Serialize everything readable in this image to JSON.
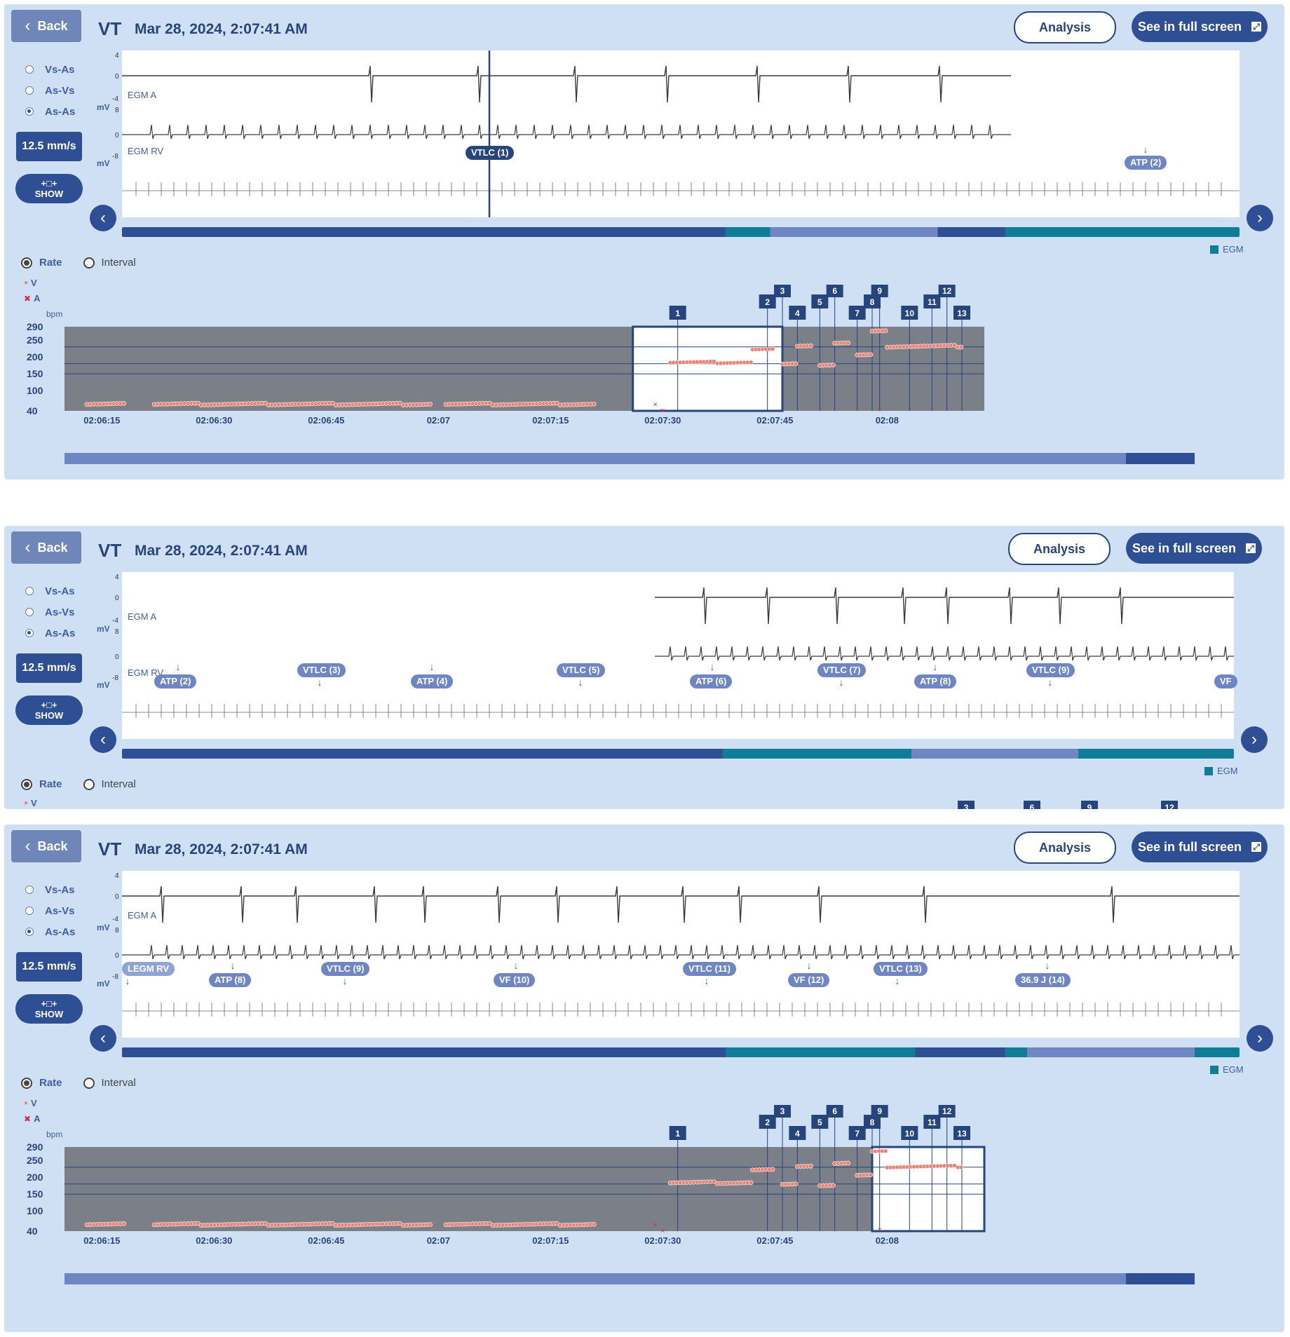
{
  "common": {
    "back_label": "Back",
    "episode_type": "VT",
    "timestamp": "Mar 28, 2024, 2:07:41 AM",
    "analysis_label": "Analysis",
    "fullscreen_label": "See in full screen",
    "radio_options": [
      "Vs-As",
      "As-Vs",
      "As-As"
    ],
    "selected_radio": "As-As",
    "sweep_speed": "12.5 mm/s",
    "show_label": "SHOW",
    "mv_unit": "mV",
    "scale_ticks": [
      "4",
      "0",
      "-4",
      "8",
      "0",
      "-8"
    ],
    "channel_a": "EGM A",
    "channel_rv": "EGM RV",
    "egm_legend": "EGM",
    "rate_label": "Rate",
    "interval_label": "Interval",
    "legend_v": "V",
    "legend_a": "A",
    "colors": {
      "panel_bg": "#cfe0f5",
      "primary": "#2e4f94",
      "trend_bg": "#7b7f88",
      "v_marker": "#f08072",
      "a_marker": "#d0304a",
      "egm_segment": "#0f7d95"
    }
  },
  "panels": [
    {
      "markers": [
        {
          "label": "VTLC (1)",
          "selected": true
        },
        {
          "label": "ATP (2)",
          "selected": false
        }
      ]
    },
    {
      "markers": [
        {
          "label": "ATP (2)"
        },
        {
          "label": "VTLC (3)"
        },
        {
          "label": "ATP (4)"
        },
        {
          "label": "VTLC (5)"
        },
        {
          "label": "ATP (6)"
        },
        {
          "label": "VTLC (7)"
        },
        {
          "label": "ATP (8)"
        },
        {
          "label": "VTLC (9)"
        },
        {
          "label": "VF"
        }
      ]
    },
    {
      "markers": [
        {
          "label": "LEGM RV"
        },
        {
          "label": "ATP (8)"
        },
        {
          "label": "VTLC (9)"
        },
        {
          "label": "VF (10)"
        },
        {
          "label": "VTLC (11)"
        },
        {
          "label": "VF (12)"
        },
        {
          "label": "VTLC (13)"
        },
        {
          "label": "36.9 J (14)"
        }
      ]
    }
  ],
  "trend": {
    "unit": "bpm",
    "y_ticks": [
      "290",
      "250",
      "200",
      "150",
      "100",
      "40"
    ],
    "time_ticks": [
      "02:06:15",
      "02:06:30",
      "02:06:45",
      "02:07",
      "02:07:15",
      "02:07:30",
      "02:07:45",
      "02:08"
    ],
    "episode_chips": [
      "1",
      "2",
      "3",
      "4",
      "5",
      "6",
      "7",
      "8",
      "9",
      "10",
      "11",
      "12",
      "13"
    ]
  },
  "chart_data": {
    "type": "scatter",
    "title": "",
    "xlabel": "",
    "ylabel": "bpm",
    "x_ticks": [
      "02:06:15",
      "02:06:30",
      "02:06:45",
      "02:07",
      "02:07:15",
      "02:07:30",
      "02:07:45",
      "02:08"
    ],
    "ylim": [
      40,
      290
    ],
    "series": [
      {
        "name": "V",
        "segments": [
          {
            "t_start": "02:06:13",
            "t_end": "02:06:18",
            "bpm": 60
          },
          {
            "t_start": "02:06:22",
            "t_end": "02:06:59",
            "bpm": 60
          },
          {
            "t_start": "02:07:01",
            "t_end": "02:07:21",
            "bpm": 60
          },
          {
            "t_start": "02:07:31",
            "t_end": "02:07:42",
            "bpm": 184
          },
          {
            "t_start": "02:07:42",
            "t_end": "02:07:45",
            "bpm": 225
          },
          {
            "t_start": "02:07:46",
            "t_end": "02:07:48",
            "bpm": 180
          },
          {
            "t_start": "02:07:48",
            "t_end": "02:07:50",
            "bpm": 235
          },
          {
            "t_start": "02:07:51",
            "t_end": "02:07:53",
            "bpm": 178
          },
          {
            "t_start": "02:07:53",
            "t_end": "02:07:55",
            "bpm": 240
          },
          {
            "t_start": "02:07:56",
            "t_end": "02:07:58",
            "bpm": 205
          },
          {
            "t_start": "02:07:58",
            "t_end": "02:08:00",
            "bpm": 278
          },
          {
            "t_start": "02:08:00",
            "t_end": "02:08:10",
            "bpm": 232
          }
        ]
      },
      {
        "name": "A",
        "points": [
          {
            "t": "02:07:29",
            "bpm": 60
          },
          {
            "t": "02:07:30",
            "bpm": 42
          },
          {
            "t": "02:07:59",
            "bpm": 45
          }
        ]
      }
    ]
  }
}
